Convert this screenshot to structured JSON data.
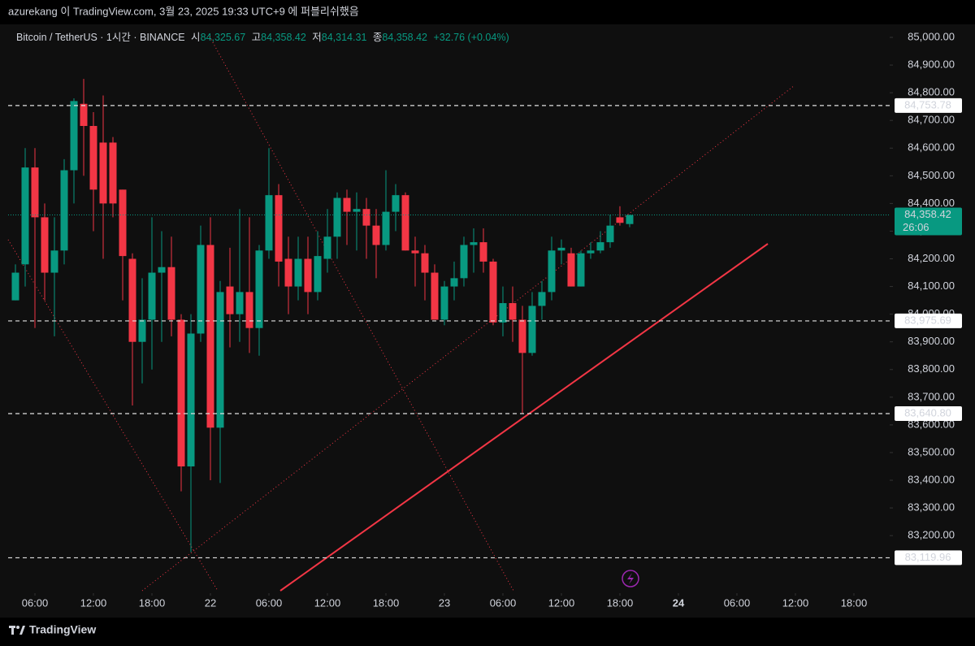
{
  "header": {
    "publisher": "azurekang 이 TradingView.com, 3월 23, 2025 19:33 UTC+9 에 퍼블리쉬했음",
    "symbol": "Bitcoin / TetherUS · 1시간 · BINANCE",
    "ohlc": [
      {
        "label": "시",
        "value": "84,325.67"
      },
      {
        "label": "고",
        "value": "84,358.42"
      },
      {
        "label": "저",
        "value": "84,314.31"
      },
      {
        "label": "종",
        "value": "84,358.42"
      }
    ],
    "change": "+32.76 (+0.04%)"
  },
  "footer": {
    "brand": "TradingView"
  },
  "chart_data": {
    "type": "candlestick",
    "up_color": "#089981",
    "down_color": "#f23645",
    "x": [
      4,
      5,
      6,
      7,
      8,
      9,
      10,
      11,
      12,
      13,
      14,
      15,
      16,
      17,
      18,
      19,
      20,
      21,
      22,
      23,
      24,
      25,
      26,
      27,
      28,
      29,
      30,
      31,
      32,
      33,
      34,
      35,
      36,
      37,
      38,
      39,
      40,
      41,
      42,
      43,
      44,
      45,
      46,
      47,
      48,
      49,
      50,
      51,
      52,
      53,
      54,
      55,
      56,
      57,
      58,
      59,
      60,
      61,
      62,
      63,
      64,
      65,
      66,
      67
    ],
    "open": [
      84050,
      84180,
      84530,
      84350,
      84150,
      84230,
      84520,
      84760,
      84680,
      84620,
      84620,
      84450,
      84200,
      83900,
      83980,
      84150,
      84170,
      83980,
      83450,
      83930,
      84250,
      83590,
      84100,
      84000,
      84080,
      83950,
      84230,
      84430,
      84200,
      84100,
      84200,
      84080,
      84200,
      84280,
      84420,
      84370,
      84380,
      84320,
      84250,
      84370,
      84430,
      84230,
      84220,
      84150,
      83980,
      84100,
      84130,
      84250,
      84260,
      84190,
      83970,
      84040,
      83980,
      83860,
      84030,
      84080,
      84230,
      84220,
      84100,
      84220,
      84230,
      84260,
      84350,
      84325.67
    ],
    "high": [
      84180,
      84600,
      84600,
      84400,
      84350,
      84560,
      84780,
      84850,
      84730,
      84790,
      84640,
      84450,
      84220,
      84130,
      84350,
      84300,
      84280,
      84000,
      84000,
      84320,
      84350,
      84120,
      84240,
      84380,
      84350,
      84250,
      84600,
      84470,
      84280,
      84280,
      84280,
      84300,
      84380,
      84440,
      84450,
      84440,
      84420,
      84380,
      84520,
      84470,
      84440,
      84280,
      84250,
      84180,
      84120,
      84190,
      84280,
      84310,
      84310,
      84200,
      84100,
      84100,
      84030,
      84080,
      84120,
      84280,
      84270,
      84240,
      84230,
      84260,
      84300,
      84360,
      84390,
      84358.42
    ],
    "low": [
      84050,
      84100,
      83950,
      84050,
      83920,
      84180,
      84400,
      84500,
      84300,
      84200,
      84350,
      84050,
      83670,
      83750,
      83800,
      83900,
      83920,
      83360,
      83140,
      83900,
      83400,
      83390,
      83880,
      83900,
      83860,
      83850,
      84200,
      84100,
      84000,
      84050,
      84000,
      84050,
      84150,
      84200,
      84250,
      84230,
      84200,
      84130,
      84230,
      84300,
      84230,
      84100,
      84050,
      83980,
      83960,
      84050,
      84100,
      84150,
      84150,
      83960,
      83920,
      83900,
      83640,
      83850,
      83980,
      84050,
      84180,
      84100,
      84100,
      84200,
      84220,
      84240,
      84320,
      84314.31
    ],
    "close": [
      84150,
      84530,
      84350,
      84150,
      84230,
      84520,
      84770,
      84680,
      84450,
      84400,
      84400,
      84210,
      83900,
      83980,
      84150,
      84170,
      83980,
      83450,
      83930,
      84250,
      83590,
      84080,
      84000,
      84080,
      83950,
      84230,
      84430,
      84190,
      84100,
      84200,
      84080,
      84210,
      84280,
      84420,
      84370,
      84380,
      84320,
      84250,
      84370,
      84430,
      84230,
      84220,
      84150,
      83980,
      84100,
      84130,
      84250,
      84260,
      84190,
      83970,
      84040,
      83980,
      83860,
      84030,
      84080,
      84230,
      84240,
      84100,
      84220,
      84230,
      84260,
      84320,
      84330,
      84358.42
    ],
    "xlim": [
      3.25,
      93.67
    ],
    "xticks": [
      {
        "value": 6,
        "label": "06:00"
      },
      {
        "value": 12,
        "label": "12:00"
      },
      {
        "value": 18,
        "label": "18:00"
      },
      {
        "value": 24,
        "label": "22"
      },
      {
        "value": 30,
        "label": "06:00"
      },
      {
        "value": 36,
        "label": "12:00"
      },
      {
        "value": 42,
        "label": "18:00"
      },
      {
        "value": 48,
        "label": "23"
      },
      {
        "value": 54,
        "label": "06:00"
      },
      {
        "value": 60,
        "label": "12:00"
      },
      {
        "value": 66,
        "label": "18:00"
      },
      {
        "value": 72,
        "label": "24"
      },
      {
        "value": 78,
        "label": "06:00"
      },
      {
        "value": 84,
        "label": "12:00"
      },
      {
        "value": 90,
        "label": "18:00"
      }
    ],
    "ylim": [
      82992,
      85047
    ],
    "yticks": [
      {
        "value": 83200,
        "label": "83,200.00"
      },
      {
        "value": 83300,
        "label": "83,300.00"
      },
      {
        "value": 83400,
        "label": "83,400.00"
      },
      {
        "value": 83500,
        "label": "83,500.00"
      },
      {
        "value": 83600,
        "label": "83,600.00"
      },
      {
        "value": 83700,
        "label": "83,700.00"
      },
      {
        "value": 83800,
        "label": "83,800.00"
      },
      {
        "value": 83900,
        "label": "83,900.00"
      },
      {
        "value": 84000,
        "label": "84,000.00"
      },
      {
        "value": 84100,
        "label": "84,100.00"
      },
      {
        "value": 84200,
        "label": "84,200.00"
      },
      {
        "value": 84300,
        "label": "84,300.00"
      },
      {
        "value": 84400,
        "label": "84,400.00"
      },
      {
        "value": 84500,
        "label": "84,500.00"
      },
      {
        "value": 84600,
        "label": "84,600.00"
      },
      {
        "value": 84700,
        "label": "84,700.00"
      },
      {
        "value": 84800,
        "label": "84,800.00"
      },
      {
        "value": 84900,
        "label": "84,900.00"
      },
      {
        "value": 85000,
        "label": "85,000.00"
      }
    ],
    "hlines": [
      {
        "value": 84753.78,
        "label": "84,753.78"
      },
      {
        "value": 83975.69,
        "label": "83,975.69"
      },
      {
        "value": 83640.8,
        "label": "83,640.80"
      },
      {
        "value": 83119.96,
        "label": "83,119.96"
      }
    ],
    "last_price": {
      "value": 84358.42,
      "label": "84,358.42",
      "countdown": "26:06"
    }
  }
}
